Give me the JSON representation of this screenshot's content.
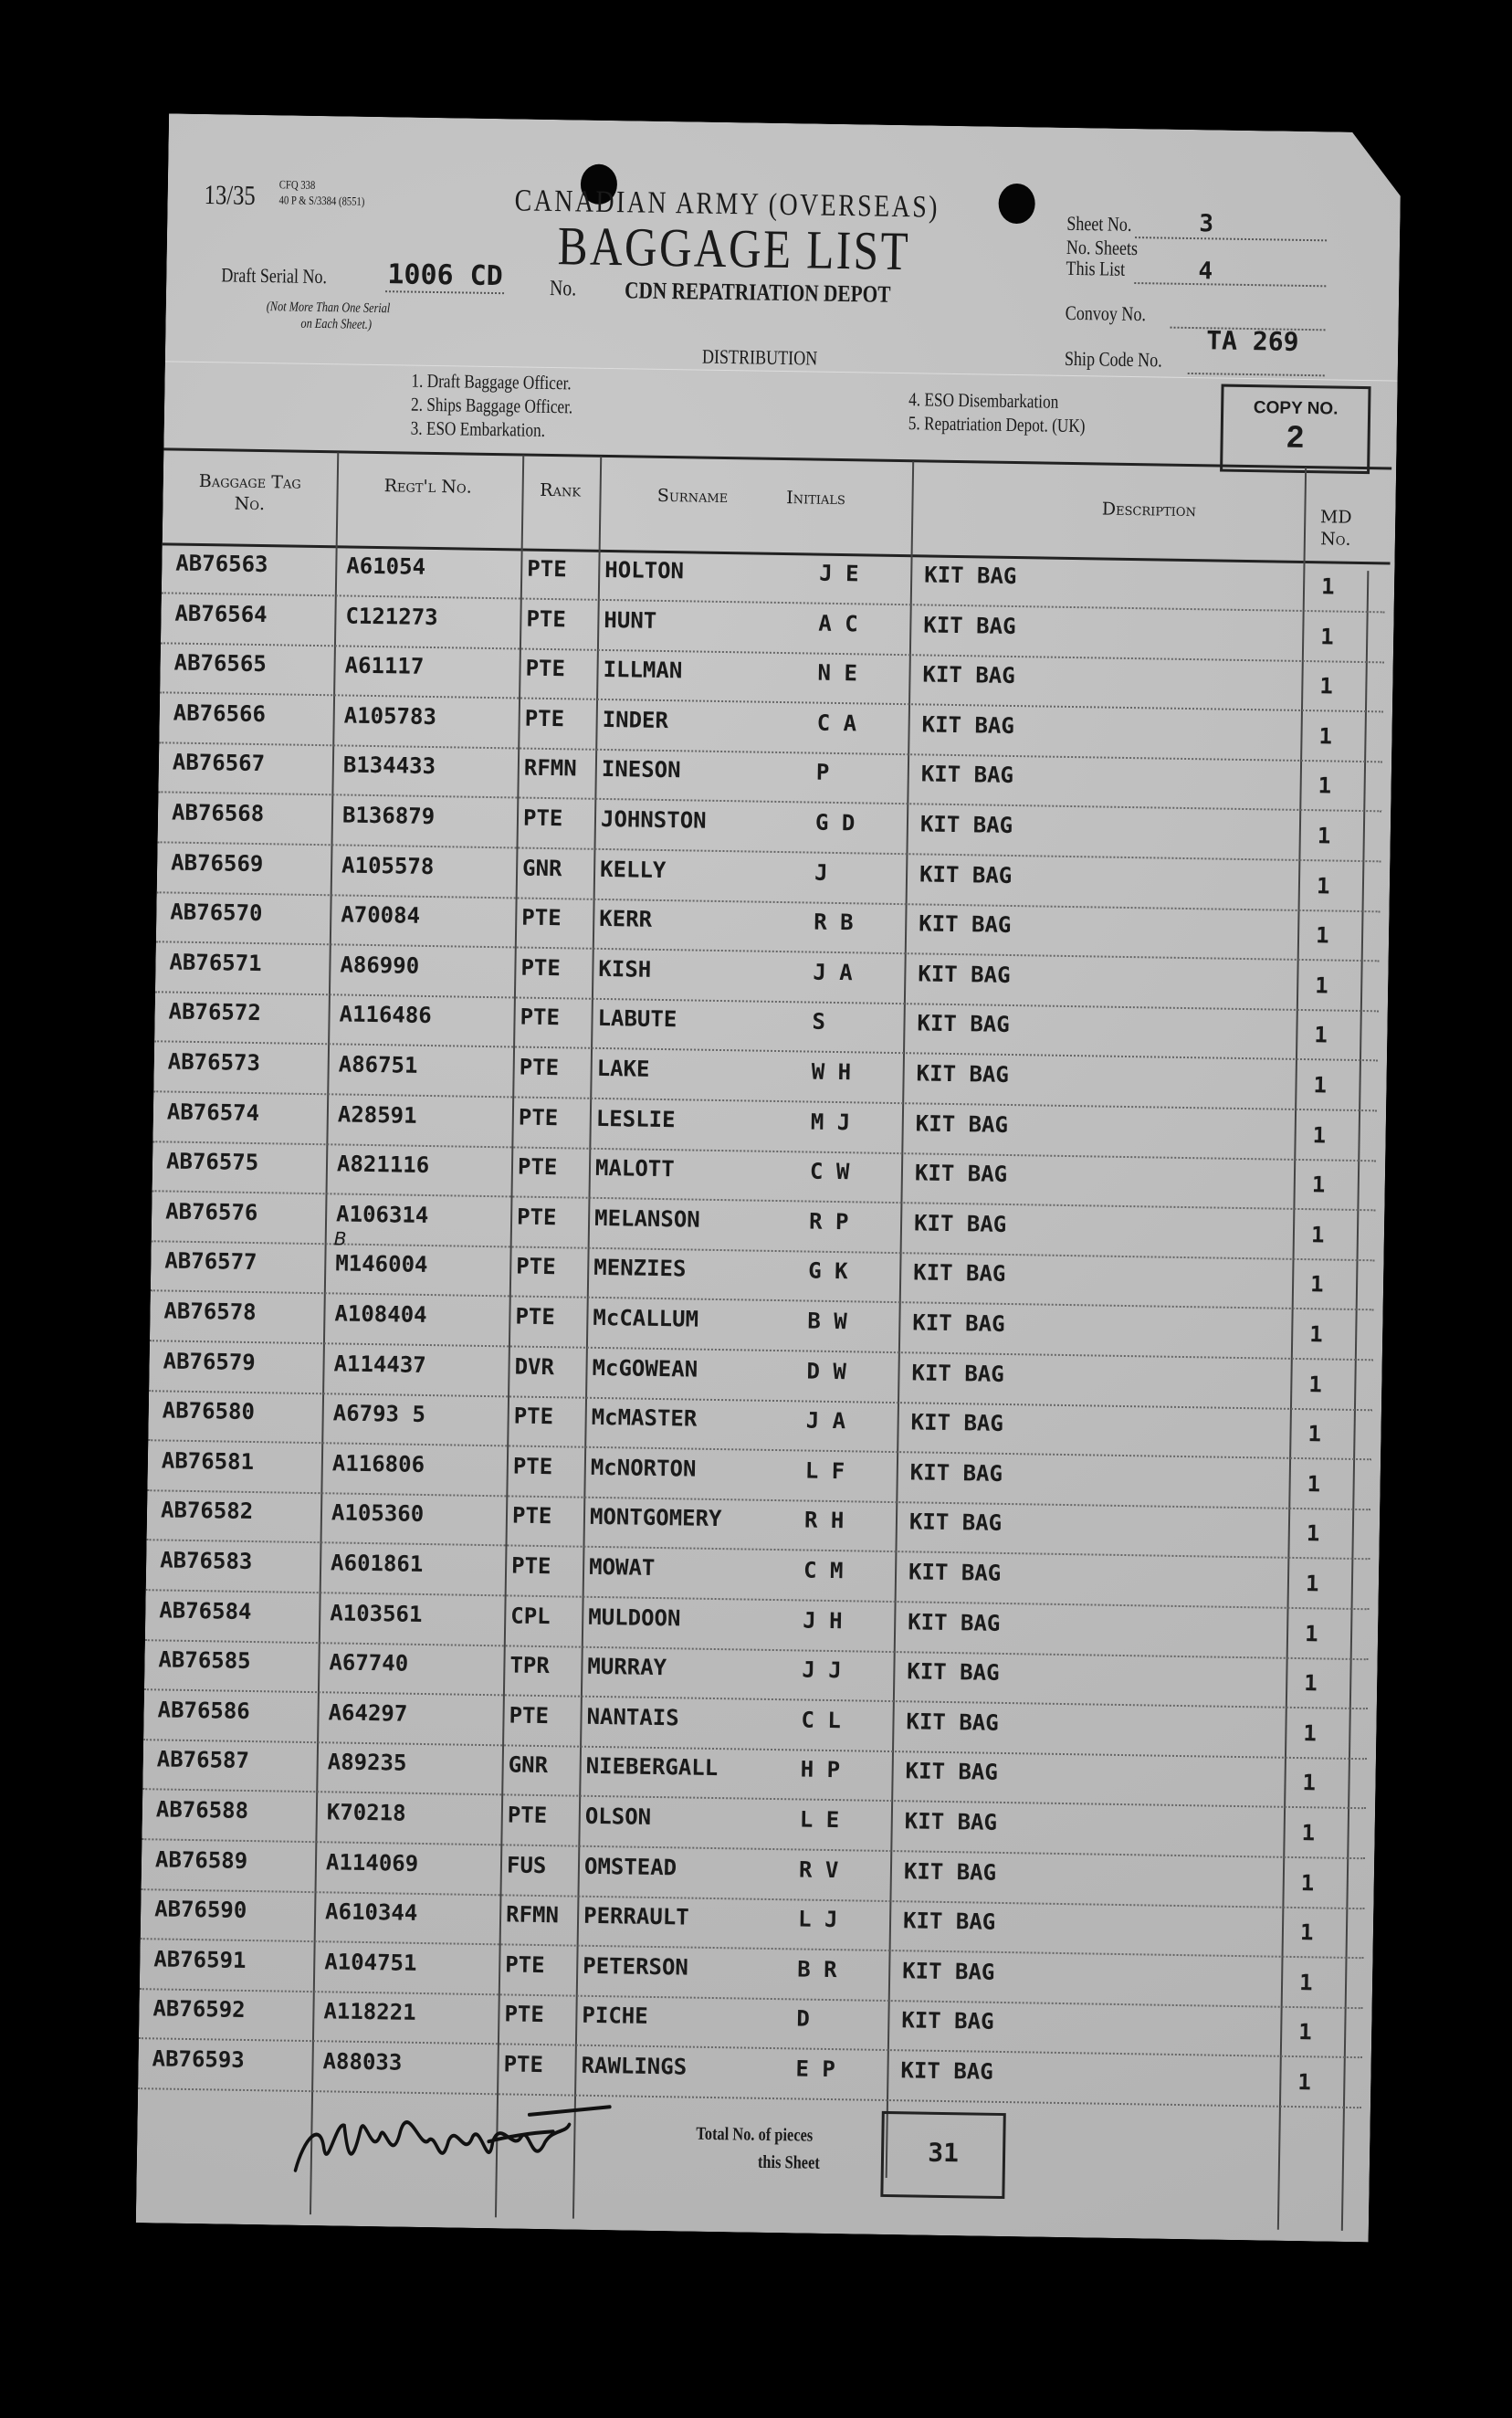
{
  "form": {
    "form_code": "13/35",
    "form_ref_line1": "CFQ 338",
    "form_ref_line2": "40 P & S/3384 (8551)",
    "org_title": "CANADIAN ARMY (OVERSEAS)",
    "title": "BAGGAGE LIST",
    "draft_serial_label": "Draft Serial No.",
    "draft_serial_value": "1006 CD",
    "draft_serial_note1": "(Not More Than One Serial",
    "draft_serial_note2": "on Each Sheet.)",
    "no_label": "No.",
    "unit": "CDN REPATRIATION DEPOT",
    "sheet_no_label": "Sheet No.",
    "sheet_no_value": "3",
    "no_sheets_label1": "No. Sheets",
    "no_sheets_label2": "This List",
    "no_sheets_value": "4",
    "convoy_label": "Convoy No.",
    "convoy_value": "",
    "ship_code_label": "Ship Code No.",
    "ship_code_value": "TA 269",
    "distribution_label": "DISTRIBUTION",
    "distribution": [
      "1.  Draft Baggage Officer.",
      "2.  Ships Baggage Officer.",
      "3.  ESO Embarkation.",
      "4.  ESO Disembarkation",
      "5.  Repatriation Depot. (UK)"
    ],
    "copy_label": "COPY NO.",
    "copy_value": "2"
  },
  "table": {
    "headers": {
      "tag_1": "Baggage Tag",
      "tag_2": "No.",
      "regt": "Regt'l No.",
      "rank": "Rank",
      "surname": "Surname",
      "initials": "Initials",
      "description": "Description",
      "md_1": "MD",
      "md_2": "No."
    },
    "rows": [
      [
        "AB76563",
        "A61054",
        "PTE",
        "HOLTON",
        "J E",
        "KIT BAG",
        "1"
      ],
      [
        "AB76564",
        "C121273",
        "PTE",
        "HUNT",
        "A C",
        "KIT BAG",
        "1"
      ],
      [
        "AB76565",
        "A61117",
        "PTE",
        "ILLMAN",
        "N E",
        "KIT BAG",
        "1"
      ],
      [
        "AB76566",
        "A105783",
        "PTE",
        "INDER",
        "C A",
        "KIT BAG",
        "1"
      ],
      [
        "AB76567",
        "B134433",
        "RFMN",
        "INESON",
        "P",
        "KIT BAG",
        "1"
      ],
      [
        "AB76568",
        "B136879",
        "PTE",
        "JOHNSTON",
        "G D",
        "KIT BAG",
        "1"
      ],
      [
        "AB76569",
        "A105578",
        "GNR",
        "KELLY",
        "J",
        "KIT BAG",
        "1"
      ],
      [
        "AB76570",
        "A70084",
        "PTE",
        "KERR",
        "R B",
        "KIT BAG",
        "1"
      ],
      [
        "AB76571",
        "A86990",
        "PTE",
        "KISH",
        "J A",
        "KIT BAG",
        "1"
      ],
      [
        "AB76572",
        "A116486",
        "PTE",
        "LABUTE",
        "S",
        "KIT BAG",
        "1"
      ],
      [
        "AB76573",
        "A86751",
        "PTE",
        "LAKE",
        "W H",
        "KIT BAG",
        "1"
      ],
      [
        "AB76574",
        "A28591",
        "PTE",
        "LESLIE",
        "M J",
        "KIT BAG",
        "1"
      ],
      [
        "AB76575",
        "A821116",
        "PTE",
        "MALOTT",
        "C W",
        "KIT BAG",
        "1"
      ],
      [
        "AB76576",
        "A106314",
        "PTE",
        "MELANSON",
        "R P",
        "KIT BAG",
        "1"
      ],
      [
        "AB76577",
        "M146004",
        "PTE",
        "MENZIES",
        "G K",
        "KIT BAG",
        "1"
      ],
      [
        "AB76578",
        "A108404",
        "PTE",
        "McCALLUM",
        "B W",
        "KIT BAG",
        "1"
      ],
      [
        "AB76579",
        "A114437",
        "DVR",
        "McGOWEAN",
        "D W",
        "KIT BAG",
        "1"
      ],
      [
        "AB76580",
        "A6793 5",
        "PTE",
        "McMASTER",
        "J A",
        "KIT BAG",
        "1"
      ],
      [
        "AB76581",
        "A116806",
        "PTE",
        "McNORTON",
        "L F",
        "KIT BAG",
        "1"
      ],
      [
        "AB76582",
        "A105360",
        "PTE",
        "MONTGOMERY",
        "R H",
        "KIT BAG",
        "1"
      ],
      [
        "AB76583",
        "A601861",
        "PTE",
        "MOWAT",
        "C M",
        "KIT BAG",
        "1"
      ],
      [
        "AB76584",
        "A103561",
        "CPL",
        "MULDOON",
        "J H",
        "KIT BAG",
        "1"
      ],
      [
        "AB76585",
        "A67740",
        "TPR",
        "MURRAY",
        "J J",
        "KIT BAG",
        "1"
      ],
      [
        "AB76586",
        "A64297",
        "PTE",
        "NANTAIS",
        "C L",
        "KIT BAG",
        "1"
      ],
      [
        "AB76587",
        "A89235",
        "GNR",
        "NIEBERGALL",
        "H P",
        "KIT BAG",
        "1"
      ],
      [
        "AB76588",
        "K70218",
        "PTE",
        "OLSON",
        "L E",
        "KIT BAG",
        "1"
      ],
      [
        "AB76589",
        "A114069",
        "FUS",
        "OMSTEAD",
        "R V",
        "KIT BAG",
        "1"
      ],
      [
        "AB76590",
        "A610344",
        "RFMN",
        "PERRAULT",
        "L J",
        "KIT BAG",
        "1"
      ],
      [
        "AB76591",
        "A104751",
        "PTE",
        "PETERSON",
        "B R",
        "KIT BAG",
        "1"
      ],
      [
        "AB76592",
        "A118221",
        "PTE",
        "PICHE",
        "D",
        "KIT BAG",
        "1"
      ],
      [
        "AB76593",
        "A88033",
        "PTE",
        "RAWLINGS",
        "E P",
        "KIT BAG",
        "1"
      ]
    ],
    "handwritten_correction": "B"
  },
  "footer": {
    "total_label1": "Total No. of pieces",
    "total_label2": "this Sheet",
    "total_value": "31",
    "signature": "signature"
  }
}
